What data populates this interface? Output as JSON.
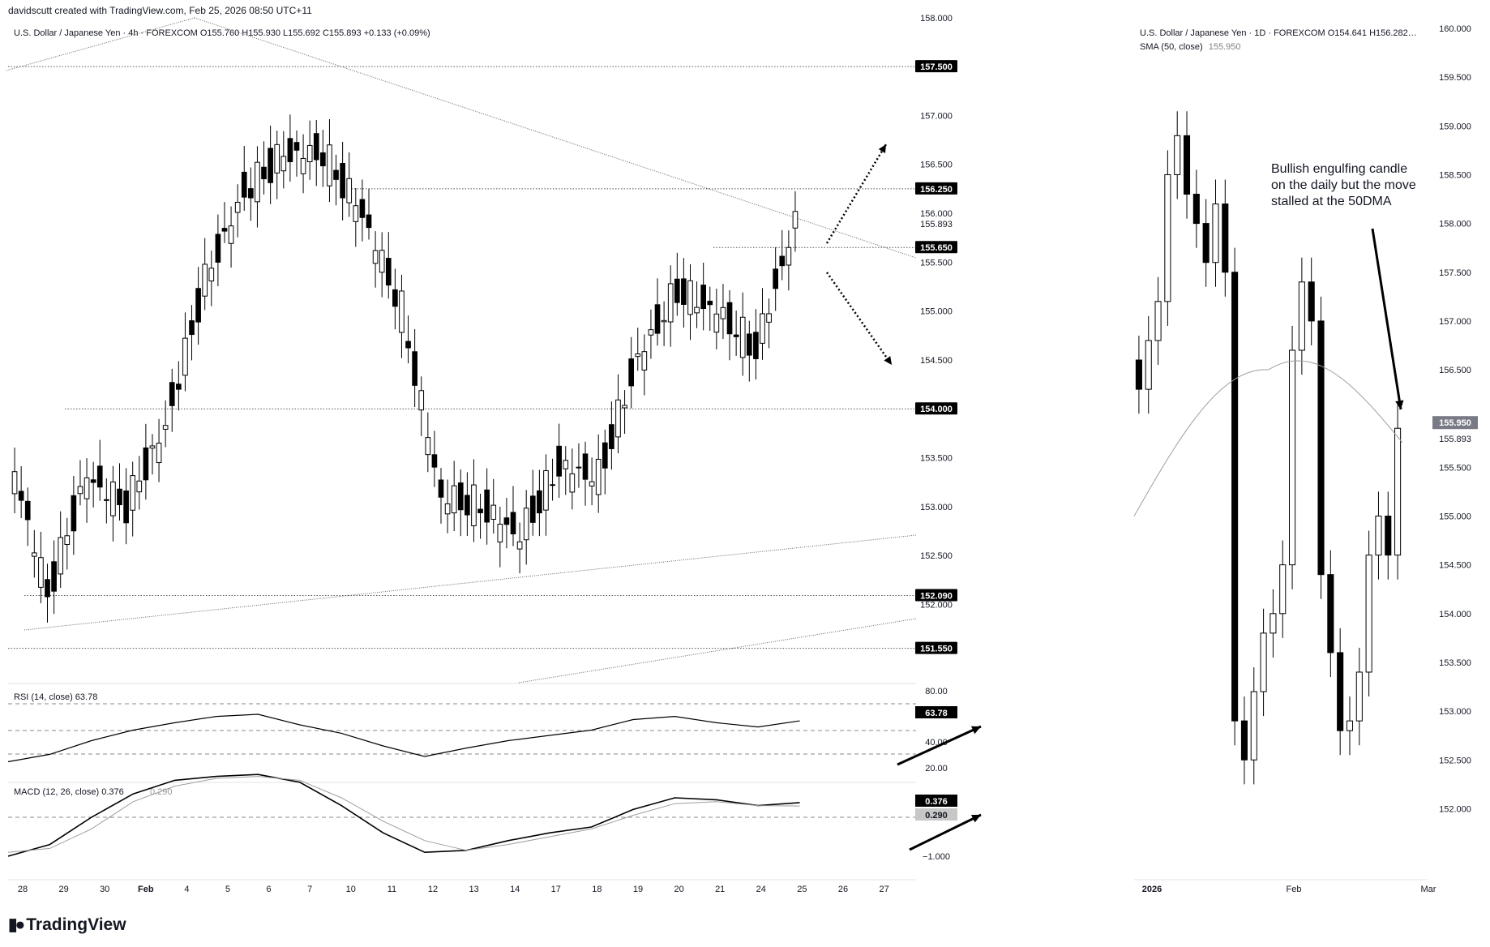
{
  "attribution": "davidscutt created with TradingView.com, Feb 25, 2026 08:50 UTC+11",
  "brand": "TradingView",
  "left_chart": {
    "header": "U.S. Dollar / Japanese Yen · 4h · FOREXCOM  O155.760  H155.930  L155.692  C155.893  +0.133  (+0.09%)",
    "price_ticks": [
      "158.000",
      "157.000",
      "156.500",
      "156.000",
      "155.500",
      "155.000",
      "154.500",
      "153.500",
      "153.000",
      "152.500",
      "152.000"
    ],
    "x_labels": [
      "28",
      "29",
      "30",
      "Feb",
      "4",
      "5",
      "6",
      "7",
      "10",
      "11",
      "12",
      "13",
      "14",
      "17",
      "18",
      "19",
      "20",
      "21",
      "24",
      "25",
      "26",
      "27"
    ],
    "level_badges": [
      "157.500",
      "156.250",
      "155.650",
      "154.000",
      "152.090",
      "151.550"
    ],
    "last_price": "155.893",
    "rsi": {
      "label": "RSI (14, close)",
      "value": "63.78",
      "ticks": [
        "80.00",
        "40.00",
        "20.00"
      ]
    },
    "macd": {
      "label": "MACD (12, 26, close)",
      "value": "0.376",
      "signal": "0.290",
      "ticks": [
        "−1.000"
      ]
    }
  },
  "right_chart": {
    "header1": "U.S. Dollar / Japanese Yen · 1D · FOREXCOM  O154.641  H156.282…",
    "header2_label": "SMA (50, close)",
    "header2_value": "155.950",
    "price_ticks": [
      "160.000",
      "159.500",
      "159.000",
      "158.500",
      "158.000",
      "157.500",
      "157.000",
      "156.500",
      "155.500",
      "155.000",
      "154.500",
      "154.000",
      "153.500",
      "153.000",
      "152.500",
      "152.000"
    ],
    "badge_sma": "155.950",
    "badge_last": "155.893",
    "x_labels": [
      "2026",
      "Feb",
      "Mar"
    ],
    "annotation": [
      "Bullish engulfing candle",
      "on the daily but the move",
      "stalled at the 50DMA"
    ]
  },
  "chart_data": [
    {
      "type": "candlestick",
      "title": "U.S. Dollar / Japanese Yen · 4h · FOREXCOM",
      "ylim": [
        152.0,
        158.0
      ],
      "x": [
        "28",
        "29",
        "30",
        "Feb",
        "4",
        "5",
        "6",
        "7",
        "10",
        "11",
        "12",
        "13",
        "14",
        "17",
        "18",
        "19",
        "20",
        "21",
        "24",
        "25"
      ],
      "close": [
        152.1,
        153.3,
        153.0,
        153.8,
        155.3,
        156.2,
        156.6,
        156.6,
        156.0,
        155.0,
        153.1,
        153.0,
        152.7,
        153.4,
        153.3,
        154.5,
        155.2,
        155.0,
        154.6,
        155.893
      ],
      "annotations": [
        "157.500",
        "156.250",
        "155.650",
        "154.000",
        "152.090",
        "151.550"
      ],
      "colors": {
        "up": "#ffffff",
        "down": "#000000",
        "outline": "#000000"
      }
    },
    {
      "type": "line",
      "title": "RSI (14, close)",
      "ylim": [
        20,
        80
      ],
      "values": [
        25,
        32,
        45,
        55,
        62,
        68,
        70,
        60,
        52,
        40,
        30,
        38,
        45,
        50,
        55,
        65,
        68,
        62,
        58,
        63.78
      ]
    },
    {
      "type": "line",
      "title": "MACD (12, 26, close)",
      "ylim": [
        -1.0,
        1.5
      ],
      "series": [
        {
          "name": "MACD",
          "values": [
            -1.0,
            -0.7,
            0.0,
            0.6,
            0.95,
            1.05,
            1.1,
            0.9,
            0.3,
            -0.4,
            -0.9,
            -0.85,
            -0.6,
            -0.4,
            -0.25,
            0.2,
            0.5,
            0.45,
            0.3,
            0.376
          ]
        },
        {
          "name": "signal",
          "values": [
            -0.9,
            -0.8,
            -0.3,
            0.4,
            0.8,
            1.0,
            1.05,
            0.95,
            0.5,
            -0.1,
            -0.6,
            -0.85,
            -0.7,
            -0.5,
            -0.3,
            0.05,
            0.35,
            0.4,
            0.3,
            0.29
          ]
        }
      ]
    },
    {
      "type": "candlestick",
      "title": "U.S. Dollar / Japanese Yen · 1D · FOREXCOM",
      "ylim": [
        152.0,
        160.0
      ],
      "x": [
        "2026",
        "Feb",
        "Mar"
      ],
      "sma_label": "SMA (50, close)",
      "sma_last": 155.95,
      "last": 155.893
    }
  ]
}
